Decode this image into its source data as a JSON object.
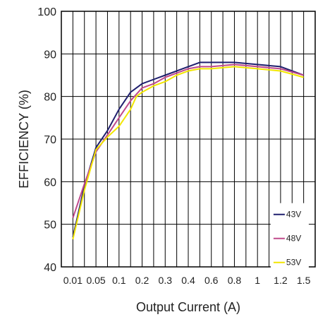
{
  "chart_data": {
    "type": "line",
    "title": "",
    "xlabel": "Output Current (A)",
    "ylabel": "EFFICIENCY (%)",
    "ylim": [
      40,
      100
    ],
    "yticks": [
      "40",
      "50",
      "60",
      "70",
      "80",
      "90",
      "100"
    ],
    "categories": [
      "0.01",
      "0.05",
      "0.1",
      "0.2",
      "0.3",
      "0.4",
      "0.6",
      "0.8",
      "1",
      "1.2",
      "1.5"
    ],
    "grid": true,
    "legend_position": "bottom-right",
    "series": [
      {
        "name": "43V",
        "color": "#1f1f6e",
        "points": [
          [
            0,
            47
          ],
          [
            0.5,
            59
          ],
          [
            1,
            68
          ],
          [
            1.5,
            72
          ],
          [
            2,
            77
          ],
          [
            2.5,
            81
          ],
          [
            2.75,
            82
          ],
          [
            3,
            83
          ],
          [
            3.5,
            84
          ],
          [
            4,
            85
          ],
          [
            4.5,
            86
          ],
          [
            5,
            87
          ],
          [
            5.5,
            88
          ],
          [
            6,
            88
          ],
          [
            7,
            88
          ],
          [
            8,
            87.5
          ],
          [
            9,
            87
          ],
          [
            10,
            85
          ]
        ]
      },
      {
        "name": "48V",
        "color": "#c04a8c",
        "points": [
          [
            0,
            51.5
          ],
          [
            0.5,
            59.5
          ],
          [
            1,
            67
          ],
          [
            1.5,
            71
          ],
          [
            2,
            75
          ],
          [
            2.5,
            79
          ],
          [
            2.75,
            80.5
          ],
          [
            3,
            82
          ],
          [
            3.5,
            83
          ],
          [
            4,
            84.5
          ],
          [
            4.5,
            85.5
          ],
          [
            5,
            86.5
          ],
          [
            5.5,
            87
          ],
          [
            6,
            87
          ],
          [
            7,
            87.5
          ],
          [
            8,
            87
          ],
          [
            9,
            86.5
          ],
          [
            10,
            85
          ]
        ]
      },
      {
        "name": "53V",
        "color": "#f2e600",
        "points": [
          [
            0,
            46.5
          ],
          [
            0.5,
            58
          ],
          [
            1,
            67.5
          ],
          [
            1.5,
            70.5
          ],
          [
            2,
            73
          ],
          [
            2.5,
            77
          ],
          [
            2.75,
            80
          ],
          [
            3,
            81
          ],
          [
            3.5,
            82.5
          ],
          [
            4,
            83.5
          ],
          [
            4.5,
            85
          ],
          [
            5,
            86
          ],
          [
            5.5,
            86.5
          ],
          [
            6,
            86.5
          ],
          [
            7,
            87
          ],
          [
            8,
            86.5
          ],
          [
            9,
            86
          ],
          [
            10,
            84.5
          ]
        ]
      }
    ]
  }
}
